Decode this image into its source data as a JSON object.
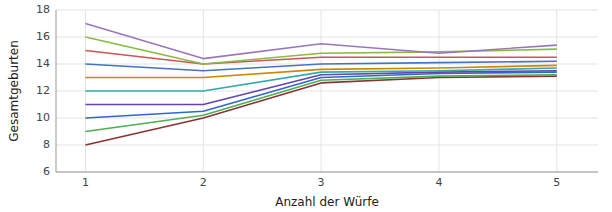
{
  "chart_data": {
    "type": "line",
    "x": [
      1,
      2,
      3,
      4,
      5
    ],
    "series": [
      {
        "color": "#8B3333",
        "values": [
          8,
          10.0,
          12.6,
          13.0,
          13.1
        ]
      },
      {
        "color": "#4CAF50",
        "values": [
          9,
          10.2,
          12.8,
          13.1,
          13.2
        ]
      },
      {
        "color": "#3366CC",
        "values": [
          10,
          10.5,
          13.0,
          13.3,
          13.4
        ]
      },
      {
        "color": "#6644AA",
        "values": [
          11,
          11.0,
          13.2,
          13.4,
          13.5
        ]
      },
      {
        "color": "#33AAAA",
        "values": [
          12,
          12.0,
          13.4,
          13.5,
          13.7
        ]
      },
      {
        "color": "#CC8800",
        "values": [
          13,
          13.0,
          13.6,
          13.7,
          13.9
        ]
      },
      {
        "color": "#4472C4",
        "values": [
          14,
          13.5,
          14.0,
          14.1,
          14.2
        ]
      },
      {
        "color": "#CC5555",
        "values": [
          15,
          14.0,
          14.5,
          14.5,
          14.5
        ]
      },
      {
        "color": "#88BB44",
        "values": [
          16,
          14.0,
          14.8,
          14.9,
          15.1
        ]
      },
      {
        "color": "#9977BB",
        "values": [
          17,
          14.4,
          15.5,
          14.8,
          15.4
        ]
      }
    ],
    "xlabel": "Anzahl der Würfe",
    "ylabel": "Gesamtgeburten",
    "xlim": [
      0.75,
      5.35
    ],
    "ylim": [
      6,
      18
    ],
    "xticks": [
      1,
      2,
      3,
      4,
      5
    ],
    "yticks": [
      6,
      8,
      10,
      12,
      14,
      16,
      18
    ],
    "grid": true
  }
}
